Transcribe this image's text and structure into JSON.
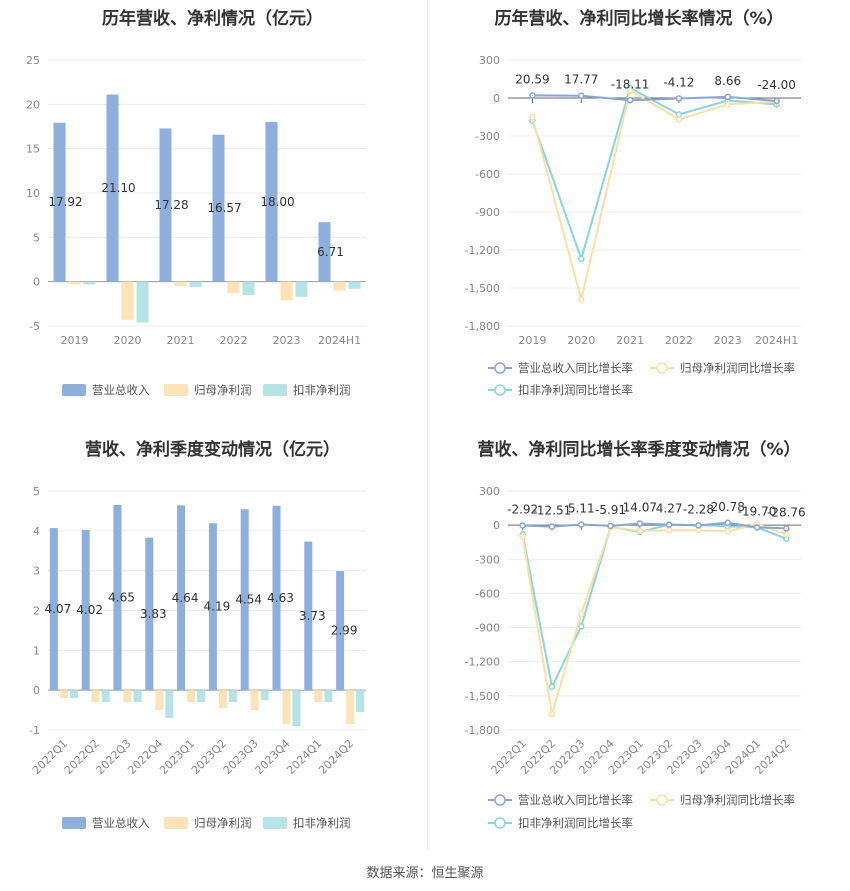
{
  "source": "数据来源：恒生聚源",
  "colors": {
    "revenue": "#8eaedc",
    "parent_profit": "#fce3b8",
    "non_recurring": "#b5e3e6",
    "rev_line": "#8aa4d6",
    "parent_line": "#fbdfa6",
    "nonrec_line": "#88d5de"
  },
  "chart_data": [
    {
      "type": "bar",
      "title": "历年营收、净利情况（亿元）",
      "categories": [
        "2019",
        "2020",
        "2021",
        "2022",
        "2023",
        "2024H1"
      ],
      "ylim": [
        -5,
        25
      ],
      "yticks": [
        -5,
        0,
        5,
        10,
        15,
        20,
        25
      ],
      "series": [
        {
          "name": "营业总收入",
          "values": [
            17.92,
            21.1,
            17.28,
            16.57,
            18.0,
            6.71
          ],
          "labels": [
            "17.92",
            "21.10",
            "17.28",
            "16.57",
            "18.00",
            "6.71"
          ]
        },
        {
          "name": "归母净利润",
          "values": [
            -0.3,
            -4.3,
            -0.5,
            -1.3,
            -2.1,
            -1.0
          ]
        },
        {
          "name": "扣非净利润",
          "values": [
            -0.3,
            -4.6,
            -0.6,
            -1.5,
            -1.7,
            -0.8
          ]
        }
      ],
      "legend": "bottom"
    },
    {
      "type": "line",
      "title": "历年营收、净利同比增长率情况（%）",
      "categories": [
        "2019",
        "2020",
        "2021",
        "2022",
        "2023",
        "2024H1"
      ],
      "ylim": [
        -1800,
        300
      ],
      "yticks": [
        -1800,
        -1500,
        -1200,
        -900,
        -600,
        -300,
        0,
        300
      ],
      "ytick_labels": [
        "-1,800",
        "-1,500",
        "-1,200",
        "-900",
        "-600",
        "-300",
        "0",
        "300"
      ],
      "series": [
        {
          "name": "营业总收入同比增长率",
          "values": [
            20.59,
            17.77,
            -18.11,
            -4.12,
            8.66,
            -24.0
          ],
          "labels": [
            "20.59",
            "17.77",
            "-18.11",
            "-4.12",
            "8.66",
            "-24.00"
          ]
        },
        {
          "name": "归母净利润同比增长率",
          "values": [
            -150,
            -1590,
            60,
            -170,
            -50,
            -30
          ]
        },
        {
          "name": "扣非净利润同比增长率",
          "values": [
            -180,
            -1270,
            80,
            -130,
            -20,
            -50
          ]
        }
      ],
      "legend": "bottom"
    },
    {
      "type": "bar",
      "title": "营收、净利季度变动情况（亿元）",
      "categories": [
        "2022Q1",
        "2022Q2",
        "2022Q3",
        "2022Q4",
        "2023Q1",
        "2023Q2",
        "2023Q3",
        "2023Q4",
        "2024Q1",
        "2024Q2"
      ],
      "ylim": [
        -1,
        5
      ],
      "yticks": [
        -1,
        0,
        1,
        2,
        3,
        4,
        5
      ],
      "series": [
        {
          "name": "营业总收入",
          "values": [
            4.07,
            4.02,
            4.65,
            3.83,
            4.64,
            4.19,
            4.54,
            4.63,
            3.73,
            2.99
          ],
          "labels": [
            "4.07",
            "4.02",
            "4.65",
            "3.83",
            "4.64",
            "4.19",
            "4.54",
            "4.63",
            "3.73",
            "2.99"
          ]
        },
        {
          "name": "归母净利润",
          "values": [
            -0.2,
            -0.3,
            -0.3,
            -0.5,
            -0.3,
            -0.45,
            -0.5,
            -0.85,
            -0.3,
            -0.85
          ]
        },
        {
          "name": "扣非净利润",
          "values": [
            -0.2,
            -0.3,
            -0.3,
            -0.7,
            -0.3,
            -0.3,
            -0.25,
            -0.9,
            -0.3,
            -0.55
          ]
        }
      ],
      "legend": "bottom"
    },
    {
      "type": "line",
      "title": "营收、净利同比增长率季度变动情况（%）",
      "categories": [
        "2022Q1",
        "2022Q2",
        "2022Q3",
        "2022Q4",
        "2023Q1",
        "2023Q2",
        "2023Q3",
        "2023Q4",
        "2024Q1",
        "2024Q2"
      ],
      "ylim": [
        -1800,
        300
      ],
      "yticks": [
        -1800,
        -1500,
        -1200,
        -900,
        -600,
        -300,
        0,
        300
      ],
      "ytick_labels": [
        "-1,800",
        "-1,500",
        "-1,200",
        "-900",
        "-600",
        "-300",
        "0",
        "300"
      ],
      "series": [
        {
          "name": "营业总收入同比增长率",
          "values": [
            -2.92,
            -12.51,
            5.11,
            -5.91,
            14.07,
            4.27,
            -2.28,
            20.78,
            -19.7,
            -28.76
          ],
          "labels": [
            "-2.92",
            "-12.51",
            "5.11",
            "-5.91",
            "14.07",
            "4.27",
            "-2.28",
            "20.78",
            "-19.70",
            "-28.76"
          ]
        },
        {
          "name": "归母净利润同比增长率",
          "values": [
            -100,
            -1660,
            -780,
            -20,
            -50,
            -45,
            -45,
            -55,
            10,
            -80
          ]
        },
        {
          "name": "扣非净利润同比增长率",
          "values": [
            -80,
            -1420,
            -890,
            -15,
            -60,
            5,
            0,
            -10,
            -20,
            -120
          ]
        }
      ],
      "legend": "bottom"
    }
  ]
}
